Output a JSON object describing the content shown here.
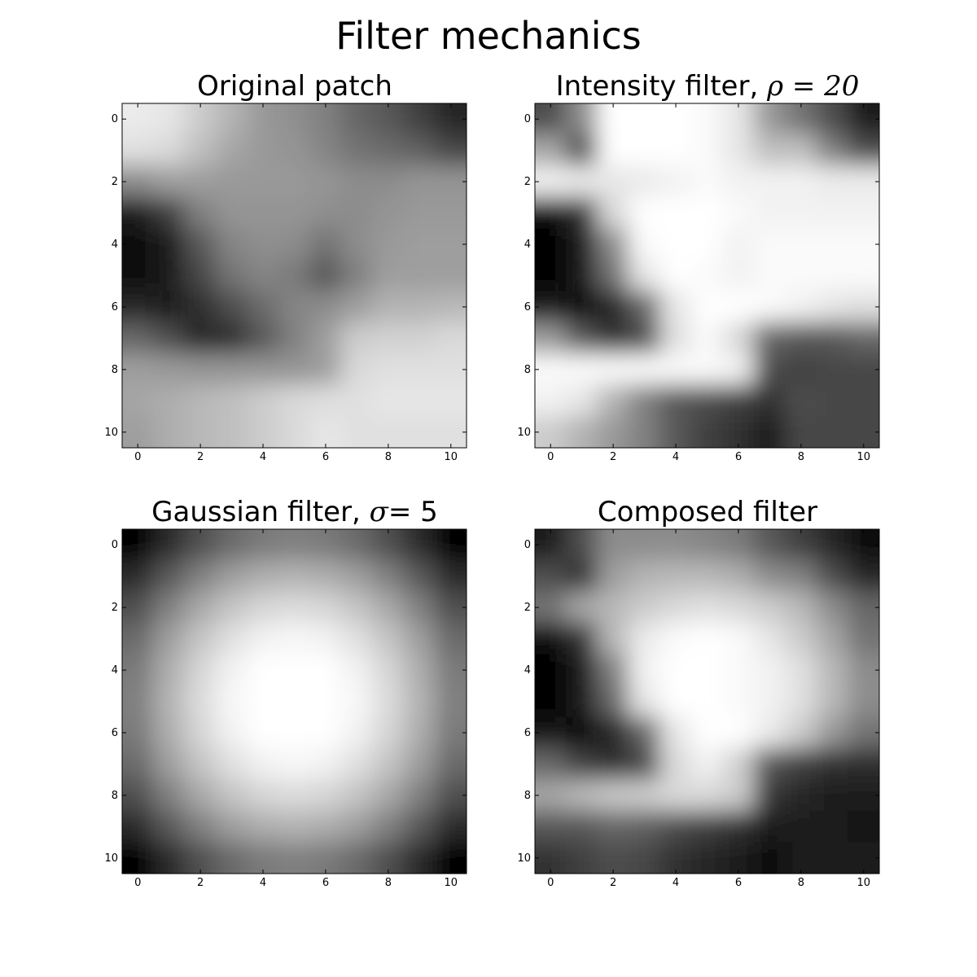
{
  "title": "Filter mechanics",
  "chart_data": [
    {
      "type": "heatmap",
      "title_text": "Original patch",
      "title_math": "",
      "title_suffix": "",
      "colormap": "gray",
      "x_ticks": [
        0,
        2,
        4,
        6,
        8,
        10
      ],
      "y_ticks": [
        0,
        2,
        4,
        6,
        8,
        10
      ],
      "xlim": [
        -0.5,
        10.5
      ],
      "ylim": [
        10.5,
        -0.5
      ],
      "values": [
        [
          0.92,
          0.9,
          0.8,
          0.7,
          0.6,
          0.56,
          0.5,
          0.4,
          0.35,
          0.25,
          0.15
        ],
        [
          0.88,
          0.85,
          0.75,
          0.65,
          0.6,
          0.58,
          0.52,
          0.45,
          0.42,
          0.38,
          0.28
        ],
        [
          0.55,
          0.62,
          0.62,
          0.6,
          0.6,
          0.6,
          0.58,
          0.55,
          0.55,
          0.58,
          0.58
        ],
        [
          0.12,
          0.25,
          0.5,
          0.58,
          0.58,
          0.58,
          0.56,
          0.55,
          0.58,
          0.6,
          0.6
        ],
        [
          0.05,
          0.12,
          0.35,
          0.52,
          0.56,
          0.55,
          0.45,
          0.55,
          0.6,
          0.62,
          0.62
        ],
        [
          0.05,
          0.12,
          0.28,
          0.45,
          0.52,
          0.48,
          0.35,
          0.5,
          0.62,
          0.62,
          0.62
        ],
        [
          0.15,
          0.1,
          0.18,
          0.3,
          0.42,
          0.52,
          0.55,
          0.62,
          0.7,
          0.7,
          0.72
        ],
        [
          0.4,
          0.3,
          0.15,
          0.18,
          0.35,
          0.5,
          0.62,
          0.8,
          0.82,
          0.82,
          0.85
        ],
        [
          0.62,
          0.6,
          0.58,
          0.58,
          0.58,
          0.58,
          0.62,
          0.85,
          0.88,
          0.88,
          0.88
        ],
        [
          0.65,
          0.68,
          0.72,
          0.75,
          0.8,
          0.85,
          0.87,
          0.88,
          0.9,
          0.9,
          0.9
        ],
        [
          0.62,
          0.68,
          0.72,
          0.75,
          0.8,
          0.85,
          0.9,
          0.88,
          0.88,
          0.88,
          0.88
        ]
      ]
    },
    {
      "type": "heatmap",
      "title_text": "Intensity filter, ",
      "title_math": "ρ",
      "title_suffix": " = 20",
      "colormap": "gray",
      "x_ticks": [
        0,
        2,
        4,
        6,
        8,
        10
      ],
      "y_ticks": [
        0,
        2,
        4,
        6,
        8,
        10
      ],
      "xlim": [
        -0.5,
        10.5
      ],
      "ylim": [
        10.5,
        -0.5
      ],
      "values": [
        [
          0.3,
          0.55,
          1.0,
          1.0,
          1.0,
          0.98,
          0.9,
          0.6,
          0.45,
          0.3,
          0.1
        ],
        [
          0.65,
          0.3,
          1.0,
          1.0,
          1.0,
          0.98,
          0.9,
          0.75,
          0.75,
          0.5,
          0.3
        ],
        [
          0.95,
          0.92,
          0.9,
          0.92,
          0.95,
          0.98,
          0.95,
          0.95,
          0.95,
          0.92,
          0.92
        ],
        [
          0.05,
          0.2,
          0.85,
          1.0,
          1.0,
          1.0,
          0.98,
          0.95,
          0.95,
          0.95,
          0.95
        ],
        [
          0.02,
          0.1,
          0.55,
          0.98,
          1.0,
          1.0,
          0.95,
          0.98,
          0.98,
          0.98,
          0.98
        ],
        [
          0.02,
          0.1,
          0.45,
          0.9,
          1.0,
          0.98,
          0.95,
          0.98,
          0.98,
          0.98,
          0.98
        ],
        [
          0.1,
          0.05,
          0.15,
          0.4,
          0.9,
          1.0,
          1.0,
          0.98,
          0.95,
          0.9,
          0.88
        ],
        [
          0.6,
          0.35,
          0.2,
          0.3,
          0.88,
          0.98,
          0.85,
          0.4,
          0.35,
          0.35,
          0.4
        ],
        [
          0.98,
          0.98,
          0.98,
          0.98,
          0.98,
          0.98,
          0.95,
          0.3,
          0.25,
          0.28,
          0.28
        ],
        [
          0.95,
          0.9,
          0.7,
          0.5,
          0.35,
          0.3,
          0.25,
          0.2,
          0.3,
          0.28,
          0.28
        ],
        [
          0.8,
          0.7,
          0.6,
          0.5,
          0.35,
          0.25,
          0.2,
          0.1,
          0.28,
          0.28,
          0.28
        ]
      ]
    },
    {
      "type": "heatmap",
      "title_text": "Gaussian filter, ",
      "title_math": "σ",
      "title_suffix": "= 5",
      "colormap": "gray",
      "x_ticks": [
        0,
        2,
        4,
        6,
        8,
        10
      ],
      "y_ticks": [
        0,
        2,
        4,
        6,
        8,
        10
      ],
      "xlim": [
        -0.5,
        10.5
      ],
      "ylim": [
        10.5,
        -0.5
      ],
      "values": [
        [
          0.0,
          0.17,
          0.31,
          0.42,
          0.48,
          0.5,
          0.48,
          0.42,
          0.31,
          0.17,
          0.0
        ],
        [
          0.17,
          0.35,
          0.5,
          0.62,
          0.68,
          0.7,
          0.68,
          0.62,
          0.5,
          0.35,
          0.17
        ],
        [
          0.31,
          0.5,
          0.66,
          0.77,
          0.84,
          0.86,
          0.84,
          0.77,
          0.66,
          0.5,
          0.31
        ],
        [
          0.42,
          0.62,
          0.77,
          0.88,
          0.95,
          0.97,
          0.95,
          0.88,
          0.77,
          0.62,
          0.42
        ],
        [
          0.48,
          0.68,
          0.84,
          0.95,
          1.0,
          1.0,
          1.0,
          0.95,
          0.84,
          0.68,
          0.48
        ],
        [
          0.5,
          0.7,
          0.86,
          0.97,
          1.0,
          1.0,
          1.0,
          0.97,
          0.86,
          0.7,
          0.5
        ],
        [
          0.48,
          0.68,
          0.84,
          0.95,
          1.0,
          1.0,
          1.0,
          0.95,
          0.84,
          0.68,
          0.48
        ],
        [
          0.42,
          0.62,
          0.77,
          0.88,
          0.95,
          0.97,
          0.95,
          0.88,
          0.77,
          0.62,
          0.42
        ],
        [
          0.31,
          0.5,
          0.66,
          0.77,
          0.84,
          0.86,
          0.84,
          0.77,
          0.66,
          0.5,
          0.31
        ],
        [
          0.17,
          0.35,
          0.5,
          0.62,
          0.68,
          0.7,
          0.68,
          0.62,
          0.5,
          0.35,
          0.17
        ],
        [
          0.0,
          0.17,
          0.31,
          0.42,
          0.48,
          0.5,
          0.48,
          0.42,
          0.31,
          0.17,
          0.0
        ]
      ]
    },
    {
      "type": "heatmap",
      "title_text": "Composed filter",
      "title_math": "",
      "title_suffix": "",
      "colormap": "gray",
      "x_ticks": [
        0,
        2,
        4,
        6,
        8,
        10
      ],
      "y_ticks": [
        0,
        2,
        4,
        6,
        8,
        10
      ],
      "xlim": [
        -0.5,
        10.5
      ],
      "ylim": [
        10.5,
        -0.5
      ],
      "values": [
        [
          0.1,
          0.3,
          0.55,
          0.55,
          0.55,
          0.52,
          0.48,
          0.35,
          0.25,
          0.15,
          0.05
        ],
        [
          0.3,
          0.2,
          0.62,
          0.7,
          0.72,
          0.72,
          0.68,
          0.55,
          0.5,
          0.3,
          0.15
        ],
        [
          0.45,
          0.65,
          0.72,
          0.8,
          0.85,
          0.88,
          0.85,
          0.8,
          0.72,
          0.55,
          0.4
        ],
        [
          0.05,
          0.2,
          0.72,
          0.92,
          0.98,
          1.0,
          0.98,
          0.9,
          0.8,
          0.65,
          0.45
        ],
        [
          0.02,
          0.1,
          0.5,
          0.95,
          1.0,
          1.0,
          0.98,
          0.95,
          0.88,
          0.72,
          0.55
        ],
        [
          0.02,
          0.1,
          0.42,
          0.9,
          1.0,
          1.0,
          0.98,
          0.95,
          0.88,
          0.72,
          0.55
        ],
        [
          0.08,
          0.05,
          0.15,
          0.4,
          0.9,
          1.0,
          1.0,
          0.92,
          0.8,
          0.6,
          0.45
        ],
        [
          0.4,
          0.25,
          0.18,
          0.28,
          0.85,
          0.95,
          0.82,
          0.35,
          0.25,
          0.2,
          0.18
        ],
        [
          0.65,
          0.72,
          0.78,
          0.8,
          0.85,
          0.85,
          0.8,
          0.22,
          0.15,
          0.12,
          0.1
        ],
        [
          0.35,
          0.35,
          0.4,
          0.38,
          0.3,
          0.25,
          0.2,
          0.12,
          0.12,
          0.1,
          0.08
        ],
        [
          0.2,
          0.25,
          0.3,
          0.28,
          0.2,
          0.15,
          0.12,
          0.05,
          0.1,
          0.1,
          0.1
        ]
      ]
    }
  ]
}
